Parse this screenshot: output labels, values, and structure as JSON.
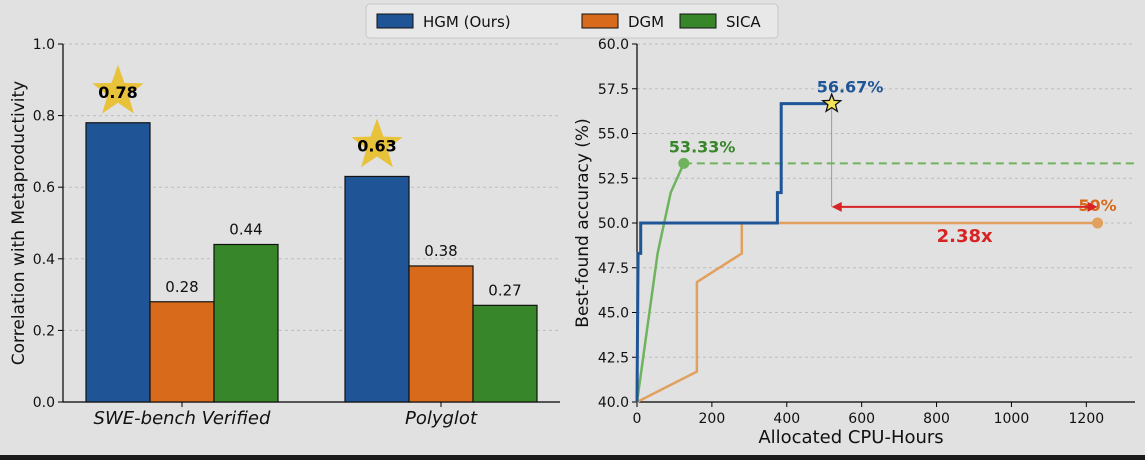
{
  "colors": {
    "hgm": "#1f5596",
    "dgm": "#d86a1b",
    "sica": "#37872a",
    "dgm_line": "#e2a05e",
    "sica_line": "#6fb35e",
    "star": "#e8c23a",
    "arrow": "#d62424",
    "grid": "#bdbdbd"
  },
  "legend": {
    "position": "top-center",
    "items": [
      {
        "label": "HGM (Ours)",
        "color": "#1f5596"
      },
      {
        "label": "DGM",
        "color": "#d86a1b"
      },
      {
        "label": "SICA",
        "color": "#37872a"
      }
    ]
  },
  "chart_data": [
    {
      "type": "bar",
      "ylabel": "Correlation with Metaproductivity",
      "xlabel": "",
      "ylim": [
        0,
        1.0
      ],
      "yticks": [
        "0.0",
        "0.2",
        "0.4",
        "0.6",
        "0.8",
        "1.0"
      ],
      "grid": true,
      "categories": [
        "SWE-bench Verified",
        "Polyglot"
      ],
      "series": [
        {
          "name": "HGM (Ours)",
          "values": [
            0.78,
            0.63
          ],
          "labels": [
            "0.78",
            "0.63"
          ],
          "starred": true
        },
        {
          "name": "DGM",
          "values": [
            0.28,
            0.38
          ],
          "labels": [
            "0.28",
            "0.38"
          ],
          "starred": false
        },
        {
          "name": "SICA",
          "values": [
            0.44,
            0.27
          ],
          "labels": [
            "0.44",
            "0.27"
          ],
          "starred": false
        }
      ]
    },
    {
      "type": "line",
      "xlabel": "Allocated CPU-Hours",
      "ylabel": "Best-found accuracy (%)",
      "xlim": [
        0,
        1330
      ],
      "ylim": [
        40.0,
        60.0
      ],
      "xticks": [
        "0",
        "200",
        "400",
        "600",
        "800",
        "1000",
        "1200"
      ],
      "yticks": [
        "40.0",
        "42.5",
        "45.0",
        "47.5",
        "50.0",
        "52.5",
        "55.0",
        "57.5",
        "60.0"
      ],
      "grid": true,
      "series": [
        {
          "name": "HGM (Ours)",
          "points": [
            [
              0,
              40.0
            ],
            [
              3,
              48.3
            ],
            [
              10,
              48.3
            ],
            [
              10,
              50.0
            ],
            [
              375,
              50.0
            ],
            [
              375,
              51.7
            ],
            [
              385,
              51.7
            ],
            [
              385,
              56.67
            ],
            [
              520,
              56.67
            ]
          ],
          "end_label": "56.67%"
        },
        {
          "name": "DGM",
          "points": [
            [
              0,
              40.0
            ],
            [
              160,
              41.7
            ],
            [
              160,
              46.7
            ],
            [
              280,
              48.3
            ],
            [
              280,
              50.0
            ],
            [
              1230,
              50.0
            ]
          ],
          "end_label": "50%"
        },
        {
          "name": "SICA",
          "points": [
            [
              0,
              40.0
            ],
            [
              55,
              48.3
            ],
            [
              90,
              51.7
            ],
            [
              125,
              53.33
            ]
          ],
          "end_label": "53.33%",
          "dashed_extension_to": 1330
        }
      ],
      "annotation": {
        "text": "2.38x",
        "from_x": 520,
        "to_x": 1230,
        "y": 50.9
      }
    }
  ]
}
